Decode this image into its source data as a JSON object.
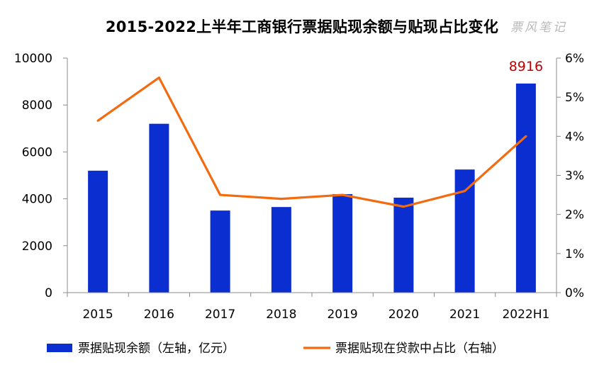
{
  "title": "2015-2022上半年工商银行票据贴现余额与贴现占比变化",
  "watermark": "票风笔记",
  "chart_data": {
    "type": "bar+line",
    "categories": [
      "2015",
      "2016",
      "2017",
      "2018",
      "2019",
      "2020",
      "2021",
      "2022H1"
    ],
    "series": [
      {
        "name": "票据贴现余额（左轴，亿元）",
        "type": "bar",
        "axis": "left",
        "color": "#0a2ecf",
        "values": [
          5200,
          7200,
          3500,
          3650,
          4200,
          4050,
          5250,
          8916
        ]
      },
      {
        "name": "票据贴现在贷款中占比（右轴）",
        "type": "line",
        "axis": "right",
        "color": "#f26b11",
        "values": [
          4.4,
          5.5,
          2.5,
          2.4,
          2.5,
          2.2,
          2.6,
          4.0
        ]
      }
    ],
    "y_left": {
      "min": 0,
      "max": 10000,
      "ticks": [
        "0",
        "2000",
        "4000",
        "6000",
        "8000",
        "10000"
      ]
    },
    "y_right": {
      "min": 0,
      "max": 6,
      "ticks": [
        "0%",
        "1%",
        "2%",
        "3%",
        "4%",
        "5%",
        "6%"
      ]
    },
    "data_labels": [
      {
        "category_index": 7,
        "text": "8916"
      }
    ],
    "grid": false,
    "legend_position": "bottom"
  }
}
